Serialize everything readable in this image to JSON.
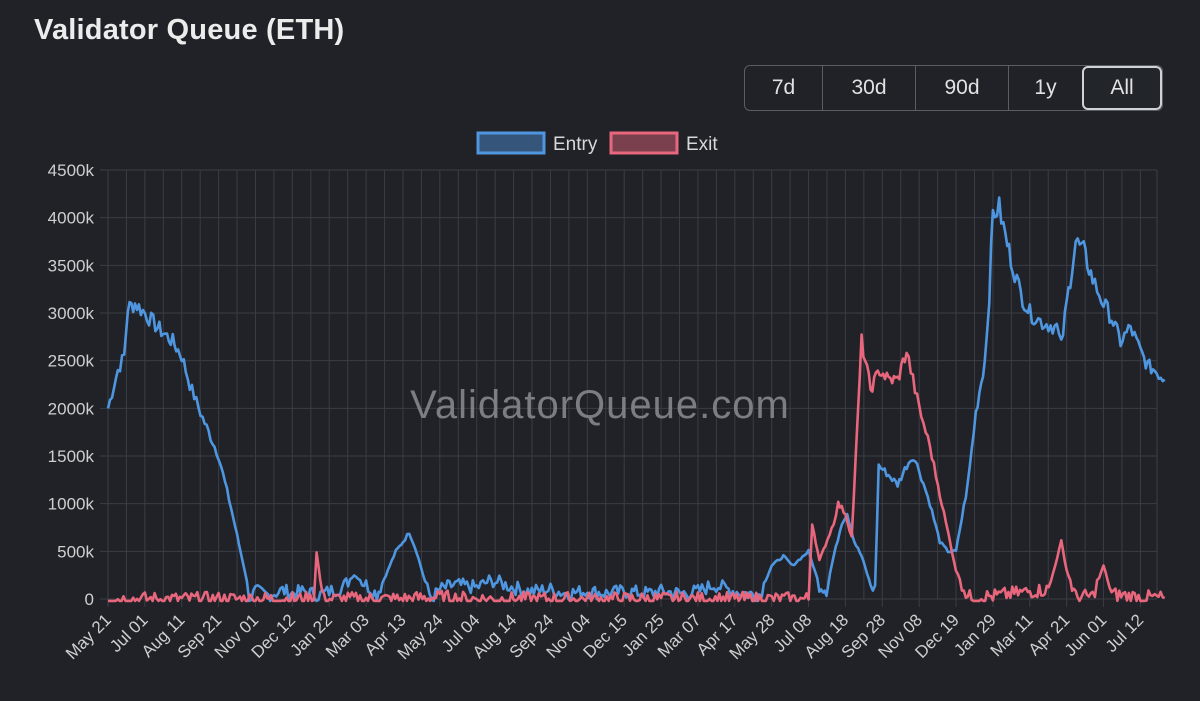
{
  "header": {
    "title": "Validator Queue (ETH)"
  },
  "range_selector": {
    "options": [
      "7d",
      "30d",
      "90d",
      "1y",
      "All"
    ],
    "selected": "All"
  },
  "watermark": "ValidatorQueue.com",
  "colors": {
    "entry": "#4f96e0",
    "exit": "#e8677d",
    "grid": "#3a3d43",
    "background": "#202227"
  },
  "chart_data": {
    "type": "line",
    "title": "",
    "xlabel": "",
    "ylabel": "",
    "legend_position": "top-center",
    "grid": true,
    "ylim": [
      0,
      4500
    ],
    "y_ticks": [
      "0",
      "500k",
      "1000k",
      "1500k",
      "2000k",
      "2500k",
      "3000k",
      "3500k",
      "4000k",
      "4500k"
    ],
    "x_ticks": [
      "May 21",
      "Jul 01",
      "Aug 11",
      "Sep 21",
      "Nov 01",
      "Dec 12",
      "Jan 22",
      "Mar 03",
      "Apr 13",
      "May 24",
      "Jul 04",
      "Aug 14",
      "Sep 24",
      "Nov 04",
      "Dec 15",
      "Jan 25",
      "Mar 07",
      "Apr 17",
      "May 28",
      "Jul 08",
      "Aug 18",
      "Sep 28",
      "Nov 08",
      "Dec 19",
      "Jan 29",
      "Mar 11",
      "Apr 21",
      "Jun 01",
      "Jul 12"
    ],
    "series": [
      {
        "name": "Entry",
        "points": [
          [
            "May 21",
            2000
          ],
          [
            "Jun 01",
            2400
          ],
          [
            "Jun 08",
            2550
          ],
          [
            "Jun 12",
            3050
          ],
          [
            "Jun 20",
            3100
          ],
          [
            "Jul 01",
            3000
          ],
          [
            "Jul 15",
            2850
          ],
          [
            "Aug 01",
            2700
          ],
          [
            "Aug 11",
            2550
          ],
          [
            "Aug 20",
            2250
          ],
          [
            "Sep 01",
            1950
          ],
          [
            "Sep 21",
            1500
          ],
          [
            "Oct 05",
            950
          ],
          [
            "Oct 20",
            300
          ],
          [
            "Oct 25",
            0
          ],
          [
            "Nov 01",
            80
          ],
          [
            "Nov 15",
            40
          ],
          [
            "Dec 01",
            90
          ],
          [
            "Dec 12",
            60
          ],
          [
            "Dec 25",
            80
          ],
          [
            "Jan 10",
            40
          ],
          [
            "Jan 22",
            80
          ],
          [
            "Feb 05",
            120
          ],
          [
            "Feb 18",
            250
          ],
          [
            "Mar 03",
            150
          ],
          [
            "Mar 15",
            50
          ],
          [
            "Mar 25",
            250
          ],
          [
            "Apr 05",
            500
          ],
          [
            "Apr 13",
            600
          ],
          [
            "Apr 20",
            700
          ],
          [
            "Apr 28",
            500
          ],
          [
            "May 10",
            100
          ],
          [
            "May 15",
            0
          ],
          [
            "May 24",
            100
          ],
          [
            "Jun 10",
            150
          ],
          [
            "Jul 04",
            120
          ],
          [
            "Jul 20",
            200
          ],
          [
            "Aug 14",
            120
          ],
          [
            "Sep 01",
            80
          ],
          [
            "Sep 24",
            100
          ],
          [
            "Oct 10",
            60
          ],
          [
            "Nov 04",
            80
          ],
          [
            "Nov 25",
            60
          ],
          [
            "Dec 15",
            80
          ],
          [
            "Jan 10",
            60
          ],
          [
            "Jan 25",
            80
          ],
          [
            "Feb 15",
            60
          ],
          [
            "Mar 07",
            80
          ],
          [
            "Mar 25",
            150
          ],
          [
            "Apr 17",
            80
          ],
          [
            "May 05",
            50
          ],
          [
            "May 15",
            50
          ],
          [
            "May 28",
            350
          ],
          [
            "Jun 10",
            450
          ],
          [
            "Jun 20",
            350
          ],
          [
            "Jul 08",
            500
          ],
          [
            "Jul 20",
            150
          ],
          [
            "Jul 28",
            100
          ],
          [
            "Aug 05",
            450
          ],
          [
            "Aug 14",
            800
          ],
          [
            "Aug 20",
            900
          ],
          [
            "Aug 28",
            600
          ],
          [
            "Sep 05",
            450
          ],
          [
            "Sep 15",
            150
          ],
          [
            "Sep 20",
            100
          ],
          [
            "Sep 24",
            1400
          ],
          [
            "Oct 05",
            1300
          ],
          [
            "Oct 15",
            1200
          ],
          [
            "Oct 25",
            1400
          ],
          [
            "Nov 01",
            1500
          ],
          [
            "Nov 08",
            1350
          ],
          [
            "Nov 20",
            1000
          ],
          [
            "Dec 01",
            600
          ],
          [
            "Dec 10",
            500
          ],
          [
            "Dec 19",
            500
          ],
          [
            "Jan 01",
            1200
          ],
          [
            "Jan 10",
            1950
          ],
          [
            "Jan 20",
            2500
          ],
          [
            "Jan 25",
            3200
          ],
          [
            "Jan 29",
            4050
          ],
          [
            "Feb 05",
            4100
          ],
          [
            "Feb 12",
            3800
          ],
          [
            "Feb 20",
            3500
          ],
          [
            "Mar 01",
            3200
          ],
          [
            "Mar 11",
            3000
          ],
          [
            "Mar 25",
            2900
          ],
          [
            "Apr 10",
            2850
          ],
          [
            "Apr 15",
            2650
          ],
          [
            "Apr 21",
            3100
          ],
          [
            "May 01",
            3750
          ],
          [
            "May 10",
            3650
          ],
          [
            "May 20",
            3350
          ],
          [
            "Jun 01",
            3100
          ],
          [
            "Jun 10",
            2950
          ],
          [
            "Jun 20",
            2700
          ],
          [
            "Jul 01",
            2850
          ],
          [
            "Jul 12",
            2600
          ],
          [
            "Jul 20",
            2450
          ],
          [
            "Jul 28",
            2400
          ],
          [
            "Aug 08",
            2300
          ]
        ]
      },
      {
        "name": "Exit",
        "points": [
          [
            "May 21",
            0
          ],
          [
            "Jul 01",
            0
          ],
          [
            "Aug 11",
            0
          ],
          [
            "Sep 21",
            0
          ],
          [
            "Nov 01",
            0
          ],
          [
            "Dec 12",
            0
          ],
          [
            "Jan 05",
            0
          ],
          [
            "Jan 08",
            500
          ],
          [
            "Jan 12",
            200
          ],
          [
            "Jan 16",
            0
          ],
          [
            "Mar 03",
            0
          ],
          [
            "Apr 13",
            0
          ],
          [
            "May 24",
            20
          ],
          [
            "Jul 04",
            0
          ],
          [
            "Aug 14",
            0
          ],
          [
            "Sep 24",
            0
          ],
          [
            "Nov 04",
            0
          ],
          [
            "Dec 15",
            0
          ],
          [
            "Jan 25",
            0
          ],
          [
            "Mar 07",
            0
          ],
          [
            "Apr 17",
            0
          ],
          [
            "May 28",
            0
          ],
          [
            "Jun 20",
            0
          ],
          [
            "Jul 08",
            0
          ],
          [
            "Jul 12",
            800
          ],
          [
            "Jul 20",
            400
          ],
          [
            "Aug 05",
            800
          ],
          [
            "Aug 10",
            1000
          ],
          [
            "Aug 18",
            900
          ],
          [
            "Aug 25",
            650
          ],
          [
            "Sep 05",
            2700
          ],
          [
            "Sep 15",
            2200
          ],
          [
            "Sep 25",
            2400
          ],
          [
            "Oct 05",
            2300
          ],
          [
            "Oct 15",
            2300
          ],
          [
            "Oct 25",
            2600
          ],
          [
            "Nov 01",
            2300
          ],
          [
            "Nov 08",
            2000
          ],
          [
            "Nov 20",
            1600
          ],
          [
            "Dec 01",
            1100
          ],
          [
            "Dec 10",
            700
          ],
          [
            "Dec 19",
            300
          ],
          [
            "Jan 01",
            20
          ],
          [
            "Jan 29",
            30
          ],
          [
            "Mar 11",
            80
          ],
          [
            "Apr 01",
            100
          ],
          [
            "Apr 15",
            600
          ],
          [
            "Apr 21",
            300
          ],
          [
            "May 01",
            20
          ],
          [
            "May 20",
            30
          ],
          [
            "Jun 01",
            350
          ],
          [
            "Jun 10",
            50
          ],
          [
            "Jul 12",
            20
          ],
          [
            "Aug 08",
            10
          ]
        ]
      }
    ]
  }
}
